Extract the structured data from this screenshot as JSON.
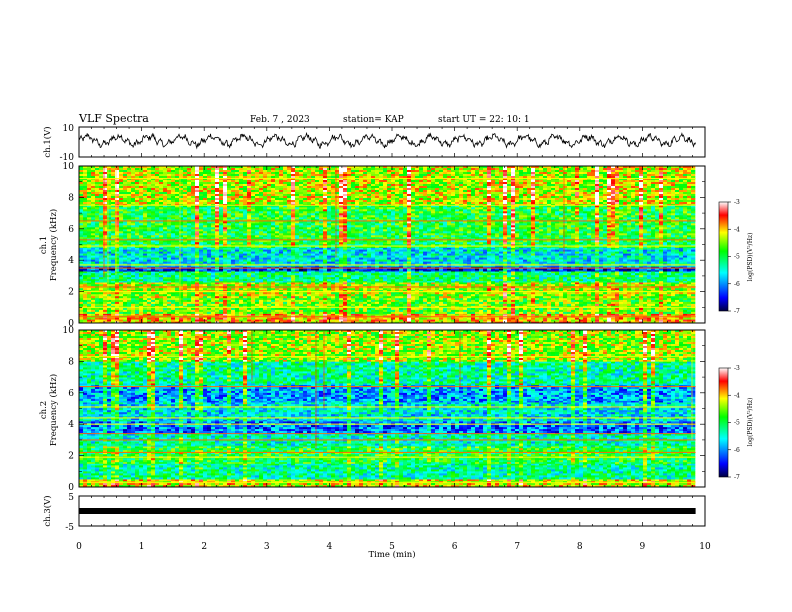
{
  "header": {
    "title": "VLF Spectra",
    "date": "Feb. 7  , 2023",
    "station": "station= KAP",
    "start": "start  UT =   22: 10: 1"
  },
  "chart_data": [
    {
      "type": "line",
      "panel": "ch1-waveform",
      "ylabel": "ch.1(V)",
      "ylim": [
        -10,
        10
      ],
      "y_ticks": [
        "10",
        "-10"
      ],
      "xlim": [
        0,
        10
      ],
      "data_extent_min": 9.85,
      "description": "oscillating waveform centred near 1 V with amplitude about 3 V and period about 0.5 min"
    },
    {
      "type": "heatmap",
      "panel": "ch1-spectrogram",
      "ylabel": "ch.1\nFrequency (kHz)",
      "ylabel_lines": [
        "ch.1",
        "Frequency (kHz)"
      ],
      "ylim": [
        0,
        10
      ],
      "y_ticks": [
        "0",
        "2",
        "4",
        "6",
        "8",
        "10"
      ],
      "xlim": [
        0,
        10
      ],
      "colorbar": {
        "label": "log(PSD)(V²/Hz)",
        "range": [
          -7,
          -3
        ],
        "ticks": [
          "-3",
          "-4",
          "-5",
          "-6",
          "-7"
        ]
      },
      "bands_khz": [
        {
          "from": 0.0,
          "to": 0.6,
          "level": -4.0
        },
        {
          "from": 0.6,
          "to": 1.6,
          "level": -4.6
        },
        {
          "from": 1.6,
          "to": 2.6,
          "level": -4.4
        },
        {
          "from": 2.6,
          "to": 3.3,
          "level": -5.2
        },
        {
          "from": 3.3,
          "to": 3.6,
          "level": -6.4
        },
        {
          "from": 3.6,
          "to": 4.8,
          "level": -5.6
        },
        {
          "from": 4.8,
          "to": 5.4,
          "level": -5.0
        },
        {
          "from": 5.4,
          "to": 7.5,
          "level": -4.9
        },
        {
          "from": 7.5,
          "to": 10.0,
          "level": -4.3
        }
      ],
      "lines_khz": [
        0.4,
        1.0,
        2.0,
        2.3,
        3.5,
        3.7,
        4.9,
        5.3,
        6.5,
        7.5,
        9.2
      ]
    },
    {
      "type": "heatmap",
      "panel": "ch2-spectrogram",
      "ylabel": "ch.2\nFrequency (kHz)",
      "ylabel_lines": [
        "ch.2",
        "Frequency (kHz)"
      ],
      "ylim": [
        0,
        10
      ],
      "y_ticks": [
        "0",
        "2",
        "4",
        "6",
        "8",
        "10"
      ],
      "xlim": [
        0,
        10
      ],
      "colorbar": {
        "label": "log(PSD)(V²/Hz)",
        "range": [
          -7,
          -3
        ],
        "ticks": [
          "-3",
          "-4",
          "-5",
          "-6",
          "-7"
        ]
      },
      "bands_khz": [
        {
          "from": 0.0,
          "to": 0.5,
          "level": -4.2
        },
        {
          "from": 0.5,
          "to": 1.5,
          "level": -5.3
        },
        {
          "from": 1.5,
          "to": 2.6,
          "level": -4.9
        },
        {
          "from": 2.6,
          "to": 3.4,
          "level": -5.4
        },
        {
          "from": 3.4,
          "to": 4.2,
          "level": -6.1
        },
        {
          "from": 4.2,
          "to": 5.4,
          "level": -5.6
        },
        {
          "from": 5.4,
          "to": 6.5,
          "level": -5.9
        },
        {
          "from": 6.5,
          "to": 8.0,
          "level": -5.3
        },
        {
          "from": 8.0,
          "to": 10.0,
          "level": -4.4
        }
      ],
      "lines_khz": [
        0.3,
        1.9,
        2.2,
        3.0,
        3.4,
        4.0,
        4.4,
        5.1,
        6.4,
        8.3
      ]
    },
    {
      "type": "line",
      "panel": "ch3-waveform",
      "ylabel": "ch.3(V)",
      "ylim": [
        -5,
        5
      ],
      "y_ticks": [
        "5",
        "-5"
      ],
      "xlim": [
        0,
        10
      ],
      "level": 0,
      "description": "thick nearly constant trace near 0 V"
    }
  ],
  "x_axis": {
    "label": "Time  (min)",
    "ticks": [
      "0",
      "1",
      "2",
      "3",
      "4",
      "5",
      "6",
      "7",
      "8",
      "9",
      "10"
    ]
  }
}
